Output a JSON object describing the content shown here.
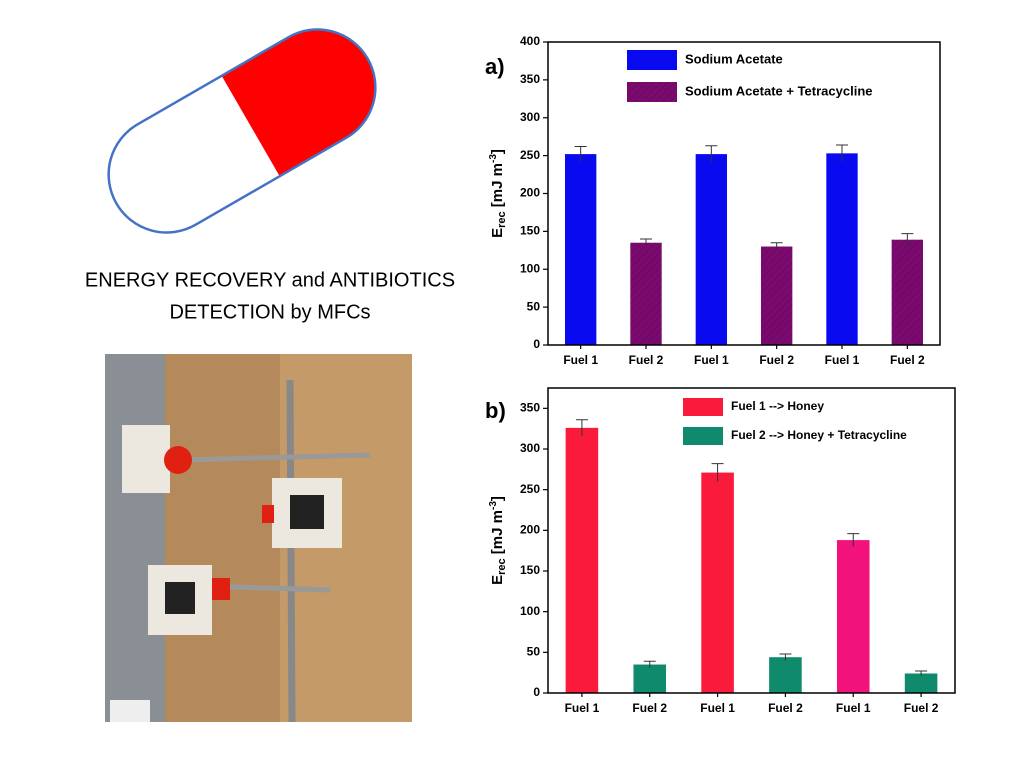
{
  "caption": [
    "ENERGY RECOVERY and ANTIBIOTICS",
    "DETECTION by MFCs"
  ],
  "chart_data": [
    {
      "type": "bar",
      "panel_label": "a)",
      "categories": [
        "Fuel 1",
        "Fuel 2",
        "Fuel 1",
        "Fuel 2",
        "Fuel 1",
        "Fuel 2"
      ],
      "values": [
        252,
        135,
        252,
        130,
        253,
        139
      ],
      "errors": [
        10,
        5,
        11,
        5,
        11,
        8
      ],
      "colors": [
        "#0a0af0",
        "#7a0a6e",
        "#0a0af0",
        "#7a0a6e",
        "#0a0af0",
        "#7a0a6e"
      ],
      "legend": [
        {
          "name": "Sodium Acetate",
          "color": "#0a0af0"
        },
        {
          "name": "Sodium Acetate + Tetracycline",
          "color": "#7a0a6e"
        }
      ],
      "ylabel": {
        "main": "E",
        "sub": "rec",
        "unit": " [mJ m",
        "sup": "-3",
        "end": "]"
      },
      "ylim": [
        0,
        400
      ],
      "yticks": [
        0,
        50,
        100,
        150,
        200,
        250,
        300,
        350,
        400
      ]
    },
    {
      "type": "bar",
      "panel_label": "b)",
      "categories": [
        "Fuel 1",
        "Fuel 2",
        "Fuel 1",
        "Fuel 2",
        "Fuel 1",
        "Fuel 2"
      ],
      "values": [
        326,
        35,
        271,
        44,
        188,
        24
      ],
      "errors": [
        10,
        4,
        11,
        4,
        8,
        3
      ],
      "colors": [
        "#fa1a3c",
        "#108a6c",
        "#fa1a3c",
        "#108a6c",
        "#f2127c",
        "#108a6c"
      ],
      "legend": [
        {
          "name": "Fuel 1 --> Honey",
          "color": "#fa1a3c"
        },
        {
          "name": "Fuel 2 --> Honey + Tetracycline",
          "color": "#108a6c"
        }
      ],
      "ylabel": {
        "main": "E",
        "sub": "rec",
        "unit": " [mJ m",
        "sup": "-3",
        "end": "]"
      },
      "ylim": [
        0,
        375
      ],
      "yticks": [
        0,
        50,
        100,
        150,
        200,
        250,
        300,
        350
      ]
    }
  ]
}
